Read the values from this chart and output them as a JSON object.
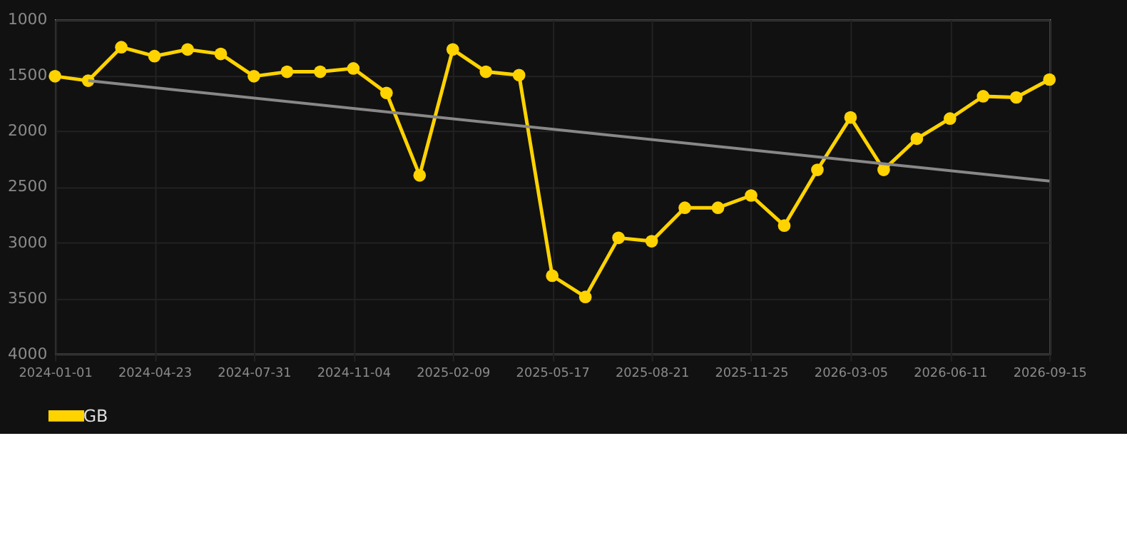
{
  "chart_data": {
    "type": "line",
    "categories": [
      "2024-01-01",
      null,
      null,
      "2024-04-23",
      null,
      null,
      "2024-07-31",
      null,
      null,
      "2024-11-04",
      null,
      null,
      "2025-02-09",
      null,
      null,
      "2025-05-17",
      null,
      null,
      "2025-08-21",
      null,
      null,
      "2025-11-25",
      null,
      null,
      "2026-03-05",
      null,
      null,
      "2026-06-11",
      null,
      null,
      "2026-09-15"
    ],
    "series": [
      {
        "name": "GB",
        "color": "#ffd300",
        "marker": "circle",
        "values": [
          1510,
          1550,
          1250,
          1330,
          1270,
          1310,
          1510,
          1470,
          1470,
          1440,
          1660,
          2400,
          1270,
          1470,
          1500,
          3300,
          3490,
          2960,
          2990,
          2690,
          2690,
          2580,
          2850,
          2350,
          1880,
          2350,
          2070,
          1890,
          1690,
          1700,
          1540
        ]
      },
      {
        "type": "line",
        "color": "#888888",
        "marker": "none",
        "values": [
          null,
          1550,
          null,
          null,
          null,
          null,
          null,
          null,
          null,
          null,
          null,
          null,
          null,
          null,
          null,
          null,
          null,
          null,
          null,
          null,
          null,
          null,
          null,
          null,
          null,
          null,
          null,
          null,
          null,
          null,
          2450
        ]
      }
    ],
    "ylim": [
      4000,
      1000
    ],
    "yticks": [
      1000,
      1500,
      2000,
      2500,
      3000,
      3500,
      4000
    ],
    "grid": true,
    "legend": "bottom"
  }
}
